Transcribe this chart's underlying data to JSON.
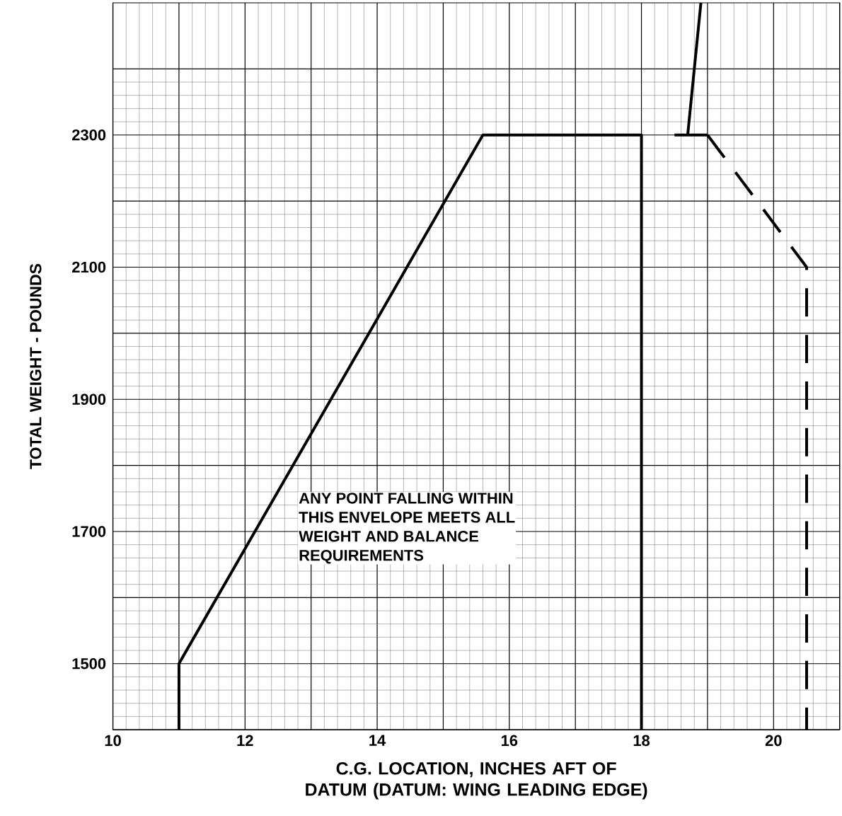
{
  "chart_data": {
    "type": "line",
    "xlabel": "C.G. LOCATION, INCHES AFT OF DATUM (DATUM: WING LEADING EDGE)",
    "ylabel": "TOTAL WEIGHT - POUNDS",
    "xlim": [
      10,
      21
    ],
    "ylim": [
      1400,
      2500
    ],
    "xticks": [
      10,
      {
        "value": 11,
        "label": null
      },
      12,
      {
        "value": 13,
        "label": null
      },
      14,
      {
        "value": 15,
        "label": null
      },
      16,
      {
        "value": 17,
        "label": null
      },
      18,
      {
        "value": 19,
        "label": null
      },
      20,
      {
        "value": 21,
        "label": null
      }
    ],
    "yticks": [
      {
        "value": 1400,
        "label": null
      },
      1500,
      {
        "value": 1600,
        "label": null
      },
      1700,
      {
        "value": 1800,
        "label": null
      },
      1900,
      {
        "value": 2000,
        "label": null
      },
      2100,
      {
        "value": 2200,
        "label": null
      },
      2300,
      {
        "value": 2400,
        "label": null
      }
    ],
    "grid": true,
    "marker": "none",
    "series": [
      {
        "color": "#000000",
        "line_style": "solid",
        "x": [
          11,
          11,
          15.6,
          18,
          18,
          null,
          18.5,
          19,
          null,
          18.7,
          18.9
        ],
        "values": [
          1400,
          1500,
          2300,
          2300,
          1400,
          null,
          2300,
          2300,
          null,
          2300,
          2500
        ]
      },
      {
        "color": "#000000",
        "line_style": "dashed",
        "x": [
          19,
          20.5,
          20.5
        ],
        "values": [
          2300,
          2100,
          1400
        ]
      }
    ],
    "annotations": [
      "ANY POINT FALLING WITHIN",
      "THIS ENVELOPE MEETS ALL",
      "WEIGHT AND BALANCE",
      "REQUIREMENTS"
    ]
  }
}
